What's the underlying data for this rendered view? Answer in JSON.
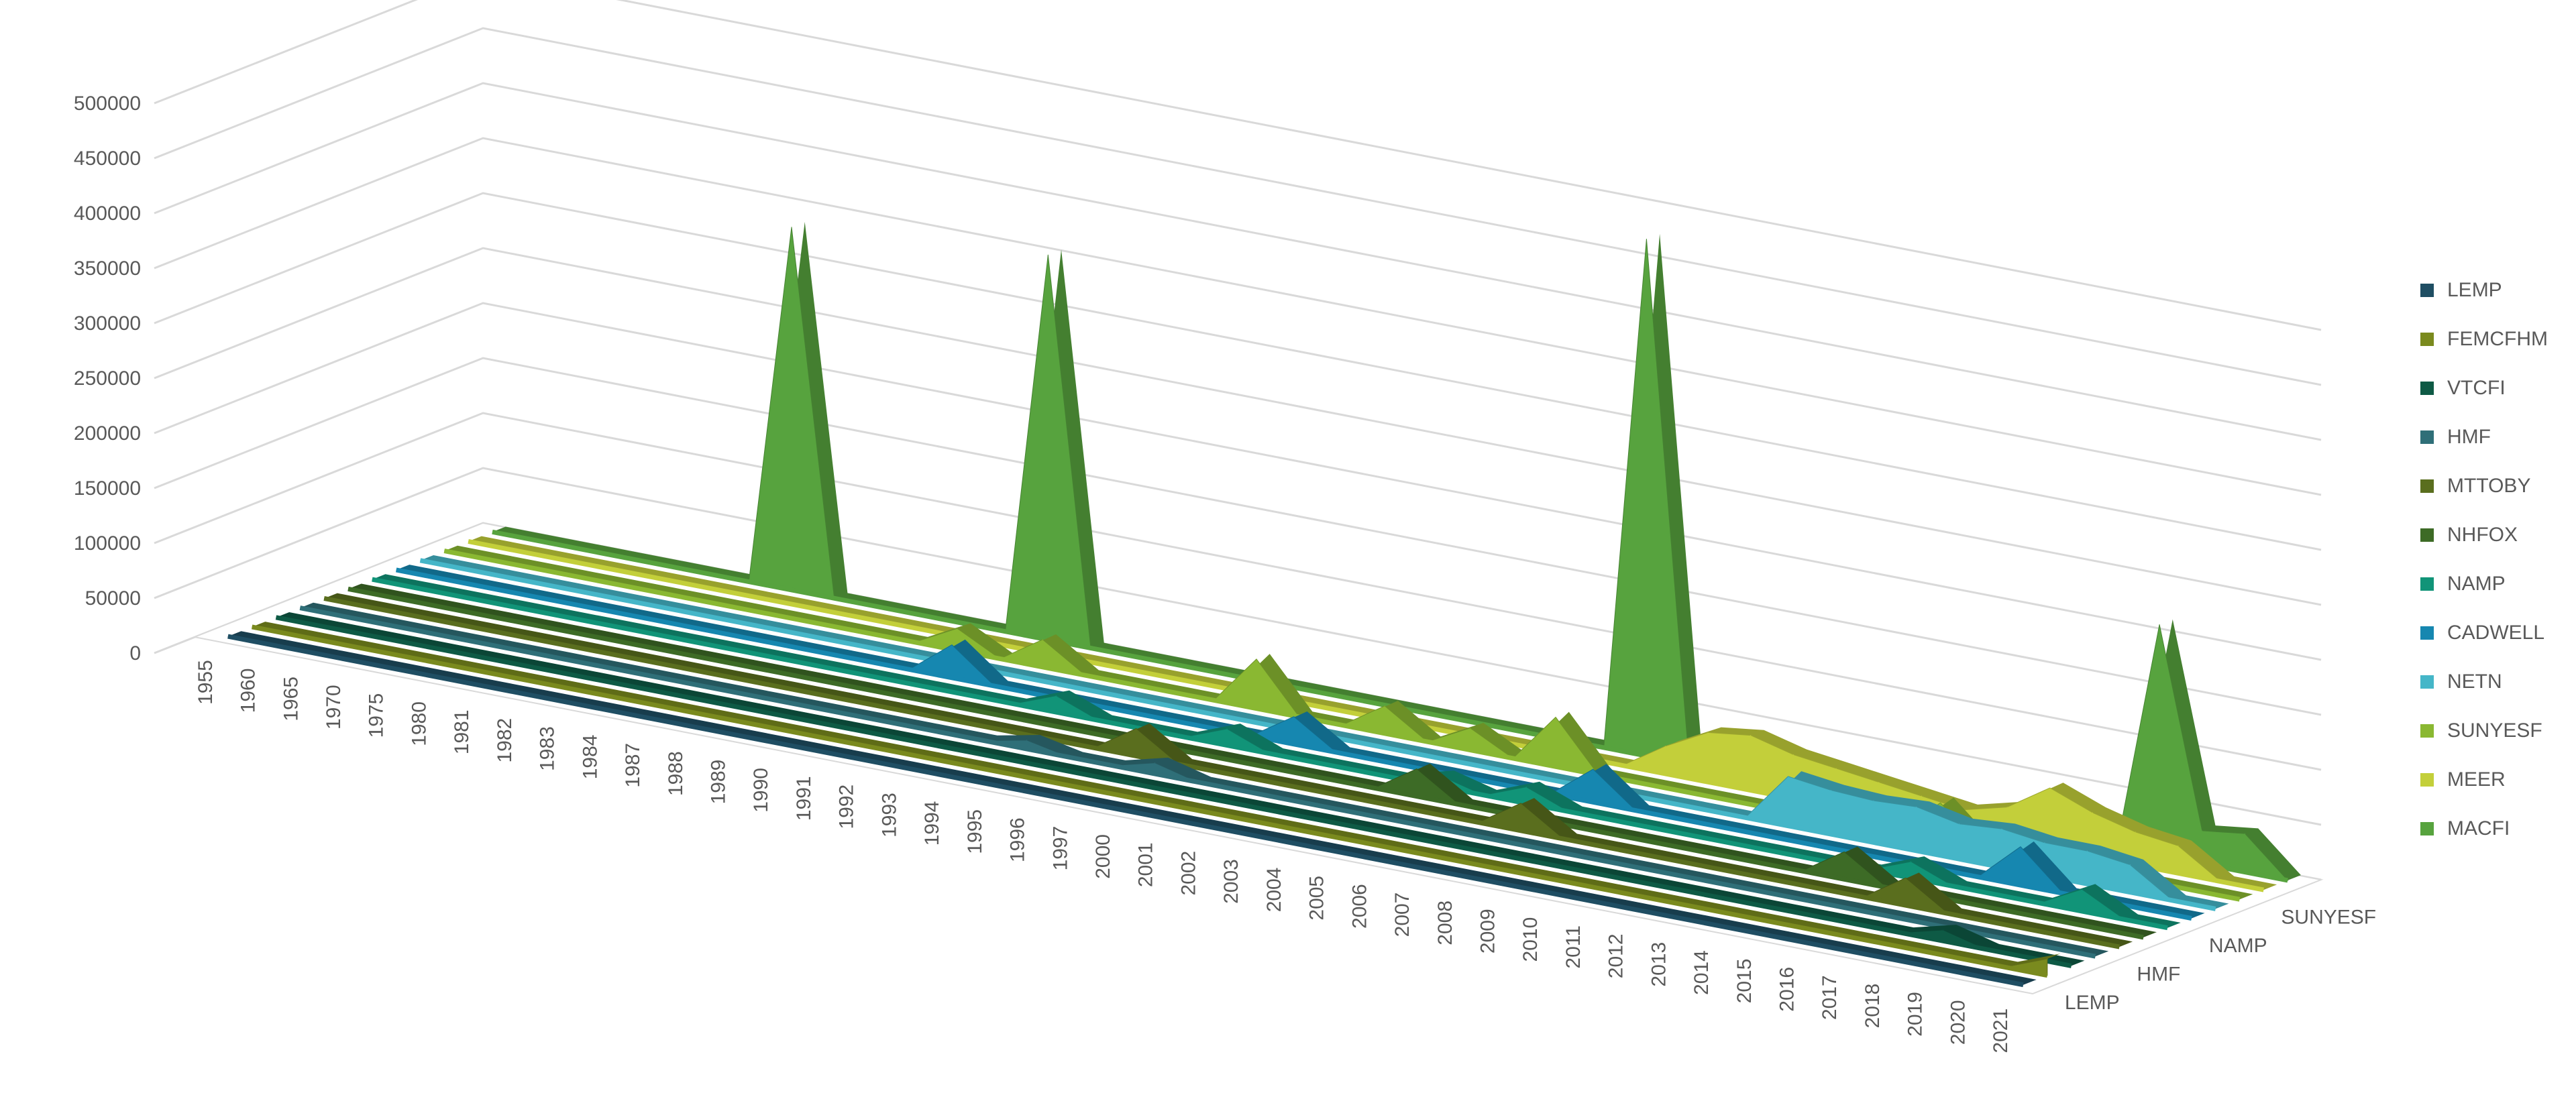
{
  "chart_data": {
    "type": "area",
    "subtype": "3d-area",
    "title": "",
    "xlabel": "",
    "ylabel": "",
    "ylim": [
      0,
      500000
    ],
    "y_ticks": [
      0,
      50000,
      100000,
      150000,
      200000,
      250000,
      300000,
      350000,
      400000,
      450000,
      500000
    ],
    "y_tick_labels": [
      "0",
      "50000",
      "100000",
      "150000",
      "200000",
      "250000",
      "300000",
      "350000",
      "400000",
      "450000",
      "500000"
    ],
    "grid": true,
    "legend_position": "right",
    "categories": [
      "1955",
      "1960",
      "1965",
      "1970",
      "1975",
      "1980",
      "1981",
      "1982",
      "1983",
      "1984",
      "1987",
      "1988",
      "1989",
      "1990",
      "1991",
      "1992",
      "1993",
      "1994",
      "1995",
      "1996",
      "1997",
      "2000",
      "2001",
      "2002",
      "2003",
      "2004",
      "2005",
      "2006",
      "2007",
      "2008",
      "2009",
      "2010",
      "2011",
      "2012",
      "2013",
      "2014",
      "2015",
      "2016",
      "2017",
      "2018",
      "2019",
      "2020",
      "2021"
    ],
    "depth_axis_labels": [
      "LEMP",
      "HMF",
      "NAMP",
      "SUNYESF"
    ],
    "series": [
      {
        "name": "LEMP",
        "color": "#1f4e63",
        "values": [
          0,
          0,
          0,
          0,
          0,
          0,
          0,
          0,
          0,
          0,
          0,
          0,
          0,
          0,
          0,
          0,
          0,
          0,
          0,
          0,
          0,
          0,
          0,
          0,
          0,
          0,
          0,
          0,
          0,
          0,
          0,
          0,
          0,
          0,
          0,
          0,
          0,
          0,
          0,
          0,
          0,
          0,
          0
        ]
      },
      {
        "name": "FEMCFHM",
        "color": "#7a8a1e",
        "values": [
          0,
          0,
          0,
          0,
          0,
          0,
          0,
          0,
          0,
          0,
          0,
          0,
          0,
          0,
          0,
          0,
          0,
          0,
          0,
          0,
          0,
          0,
          0,
          0,
          0,
          0,
          0,
          0,
          0,
          0,
          0,
          0,
          0,
          0,
          0,
          0,
          0,
          0,
          0,
          0,
          0,
          0,
          15000
        ]
      },
      {
        "name": "VTCFI",
        "color": "#0e5a45",
        "values": [
          0,
          0,
          0,
          0,
          0,
          0,
          0,
          0,
          0,
          0,
          0,
          0,
          0,
          0,
          0,
          0,
          0,
          0,
          0,
          0,
          0,
          0,
          0,
          0,
          0,
          0,
          0,
          0,
          0,
          0,
          0,
          0,
          0,
          0,
          0,
          0,
          0,
          0,
          0,
          10000,
          0,
          0,
          0
        ]
      },
      {
        "name": "HMF",
        "color": "#2f6f78",
        "values": [
          0,
          0,
          0,
          0,
          0,
          0,
          0,
          0,
          0,
          0,
          0,
          0,
          0,
          0,
          0,
          0,
          0,
          8000,
          0,
          0,
          10000,
          0,
          0,
          0,
          0,
          0,
          0,
          0,
          0,
          0,
          0,
          0,
          0,
          0,
          0,
          0,
          0,
          0,
          0,
          0,
          0,
          0,
          0
        ]
      },
      {
        "name": "MTTOBY",
        "color": "#5a6e1e",
        "values": [
          0,
          0,
          0,
          0,
          0,
          0,
          0,
          0,
          0,
          0,
          0,
          0,
          0,
          0,
          0,
          0,
          0,
          0,
          0,
          25000,
          0,
          0,
          0,
          0,
          0,
          0,
          0,
          0,
          25000,
          0,
          0,
          0,
          0,
          0,
          0,
          0,
          0,
          25000,
          0,
          0,
          0,
          0,
          0
        ]
      },
      {
        "name": "NHFOX",
        "color": "#3d6b26",
        "values": [
          0,
          0,
          0,
          0,
          0,
          0,
          0,
          0,
          0,
          0,
          0,
          0,
          0,
          0,
          0,
          0,
          0,
          0,
          0,
          0,
          0,
          0,
          0,
          0,
          0,
          25000,
          0,
          0,
          0,
          0,
          0,
          0,
          0,
          0,
          0,
          25000,
          0,
          0,
          0,
          0,
          0,
          0,
          0
        ]
      },
      {
        "name": "NAMP",
        "color": "#119478",
        "values": [
          0,
          0,
          0,
          0,
          0,
          0,
          0,
          0,
          0,
          0,
          0,
          0,
          0,
          0,
          0,
          0,
          15000,
          0,
          0,
          0,
          15000,
          0,
          0,
          0,
          0,
          10000,
          0,
          15000,
          0,
          0,
          0,
          0,
          0,
          0,
          0,
          0,
          15000,
          0,
          0,
          0,
          20000,
          0,
          0
        ]
      },
      {
        "name": "CADWELL",
        "color": "#1687b0",
        "values": [
          0,
          0,
          0,
          0,
          0,
          0,
          0,
          0,
          0,
          0,
          0,
          0,
          0,
          30000,
          0,
          0,
          0,
          0,
          0,
          0,
          0,
          25000,
          0,
          0,
          0,
          0,
          0,
          0,
          30000,
          0,
          0,
          0,
          0,
          0,
          0,
          0,
          0,
          0,
          35000,
          0,
          0,
          0,
          0
        ]
      },
      {
        "name": "NETN",
        "color": "#45b6c8",
        "values": [
          0,
          0,
          0,
          0,
          0,
          0,
          0,
          0,
          0,
          0,
          0,
          0,
          0,
          0,
          0,
          0,
          0,
          0,
          0,
          0,
          0,
          0,
          0,
          0,
          0,
          0,
          0,
          0,
          0,
          0,
          0,
          0,
          45000,
          40000,
          38000,
          40000,
          32000,
          35000,
          30000,
          30000,
          25000,
          0,
          0
        ]
      },
      {
        "name": "SUNYESF",
        "color": "#8ab832",
        "values": [
          0,
          0,
          0,
          0,
          0,
          0,
          0,
          0,
          0,
          0,
          0,
          0,
          20000,
          0,
          25000,
          0,
          0,
          0,
          0,
          45000,
          0,
          0,
          25000,
          0,
          20000,
          0,
          45000,
          0,
          0,
          0,
          0,
          0,
          0,
          0,
          0,
          35000,
          0,
          0,
          0,
          0,
          0,
          0,
          0
        ]
      },
      {
        "name": "MEER",
        "color": "#c3cf3a",
        "values": [
          0,
          0,
          0,
          0,
          0,
          0,
          0,
          0,
          0,
          0,
          0,
          0,
          0,
          0,
          0,
          0,
          0,
          0,
          0,
          0,
          0,
          0,
          0,
          0,
          0,
          0,
          0,
          0,
          25000,
          45000,
          50000,
          40000,
          35000,
          30000,
          25000,
          20000,
          30000,
          55000,
          40000,
          30000,
          25000,
          0,
          0
        ]
      },
      {
        "name": "MACFI",
        "color": "#57a33e",
        "values": [
          0,
          0,
          0,
          0,
          0,
          0,
          0,
          330000,
          0,
          0,
          0,
          0,
          0,
          350000,
          0,
          0,
          0,
          0,
          0,
          0,
          0,
          0,
          0,
          0,
          0,
          0,
          0,
          470000,
          0,
          0,
          0,
          0,
          0,
          0,
          0,
          0,
          0,
          0,
          0,
          210000,
          30000,
          35000,
          0
        ]
      }
    ]
  }
}
